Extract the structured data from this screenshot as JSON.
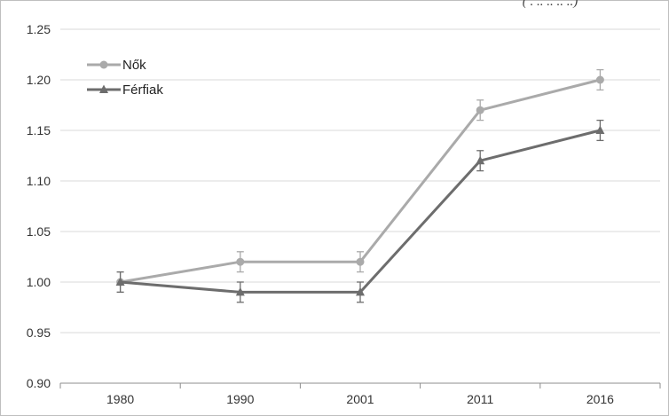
{
  "header_fragment": "( . .. ..  .. ..)",
  "chart_data": {
    "type": "line",
    "title": "",
    "xlabel": "",
    "ylabel": "",
    "categories": [
      "1980",
      "1990",
      "2001",
      "2011",
      "2016"
    ],
    "ylim": [
      0.9,
      1.25
    ],
    "yticks": [
      "0.90",
      "0.95",
      "1.00",
      "1.05",
      "1.10",
      "1.15",
      "1.20",
      "1.25"
    ],
    "grid": true,
    "legend_position": "top-left",
    "series": [
      {
        "name": "Nők",
        "color": "#aaaaaa",
        "marker": "circle",
        "values": [
          1.0,
          1.02,
          1.02,
          1.17,
          1.2
        ],
        "error": [
          0.01,
          0.01,
          0.01,
          0.01,
          0.01
        ]
      },
      {
        "name": "Férfiak",
        "color": "#6d6d6d",
        "marker": "triangle",
        "values": [
          1.0,
          0.99,
          0.99,
          1.12,
          1.15
        ],
        "error": [
          0.01,
          0.01,
          0.01,
          0.01,
          0.01
        ]
      }
    ]
  }
}
